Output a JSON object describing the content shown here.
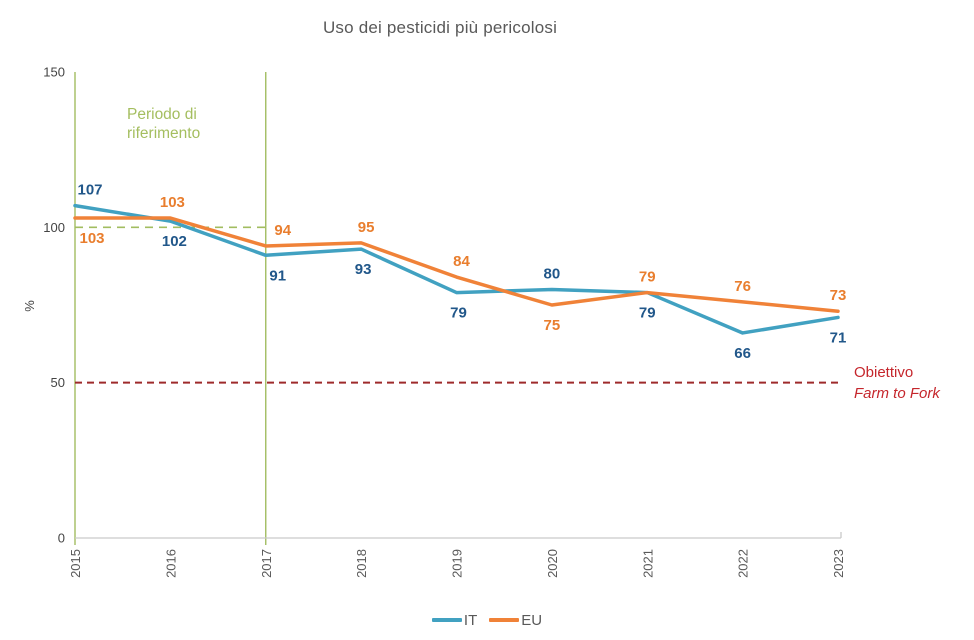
{
  "chart_data": {
    "type": "line",
    "title": "Uso dei pesticidi più pericolosi",
    "ylabel": "%",
    "categories": [
      "2015",
      "2016",
      "2017",
      "2018",
      "2019",
      "2020",
      "2021",
      "2022",
      "2023"
    ],
    "ylim": [
      0,
      150
    ],
    "yticks": [
      0,
      50,
      100,
      150
    ],
    "grid": false,
    "legend_position": "bottom-center",
    "series": [
      {
        "name": "IT",
        "color": "#41A1C1",
        "label_color": "#21578A",
        "values": [
          107,
          102,
          91,
          93,
          79,
          80,
          79,
          66,
          71
        ],
        "label_pos": [
          "above",
          "below",
          "below",
          "below",
          "below",
          "above",
          "below",
          "below",
          "below"
        ],
        "label_dx": [
          15,
          4,
          12,
          2,
          2,
          0,
          0,
          0,
          0
        ]
      },
      {
        "name": "EU",
        "color": "#F08238",
        "label_color": "#E97E2E",
        "values": [
          103,
          103,
          94,
          95,
          84,
          75,
          79,
          76,
          73
        ],
        "label_pos": [
          "below",
          "above",
          "above",
          "above",
          "above",
          "below",
          "above",
          "above",
          "above"
        ],
        "label_dx": [
          17,
          2,
          17,
          5,
          5,
          0,
          0,
          0,
          0
        ]
      }
    ],
    "annotations": {
      "reference_period": {
        "label_line1": "Periodo di",
        "label_line2": "riferimento",
        "from_category": "2015",
        "to_category": "2017",
        "baseline_value": 100,
        "line_color": "#A2BD60",
        "text_color": "#A4BE5F"
      },
      "target": {
        "label_line1": "Obiettivo",
        "label_line2": "Farm to Fork",
        "value": 50,
        "line_color": "#9E2A2B",
        "text_color": "#C5262C"
      }
    },
    "axis": {
      "line_color": "#C9C9C9",
      "xtick_label_color": "#595959",
      "ytick_label_color": "#444444",
      "ylabel_color": "#444444"
    }
  },
  "legend": {
    "items": [
      {
        "label": "IT",
        "color": "#41A1C1"
      },
      {
        "label": "EU",
        "color": "#F08238"
      }
    ]
  }
}
